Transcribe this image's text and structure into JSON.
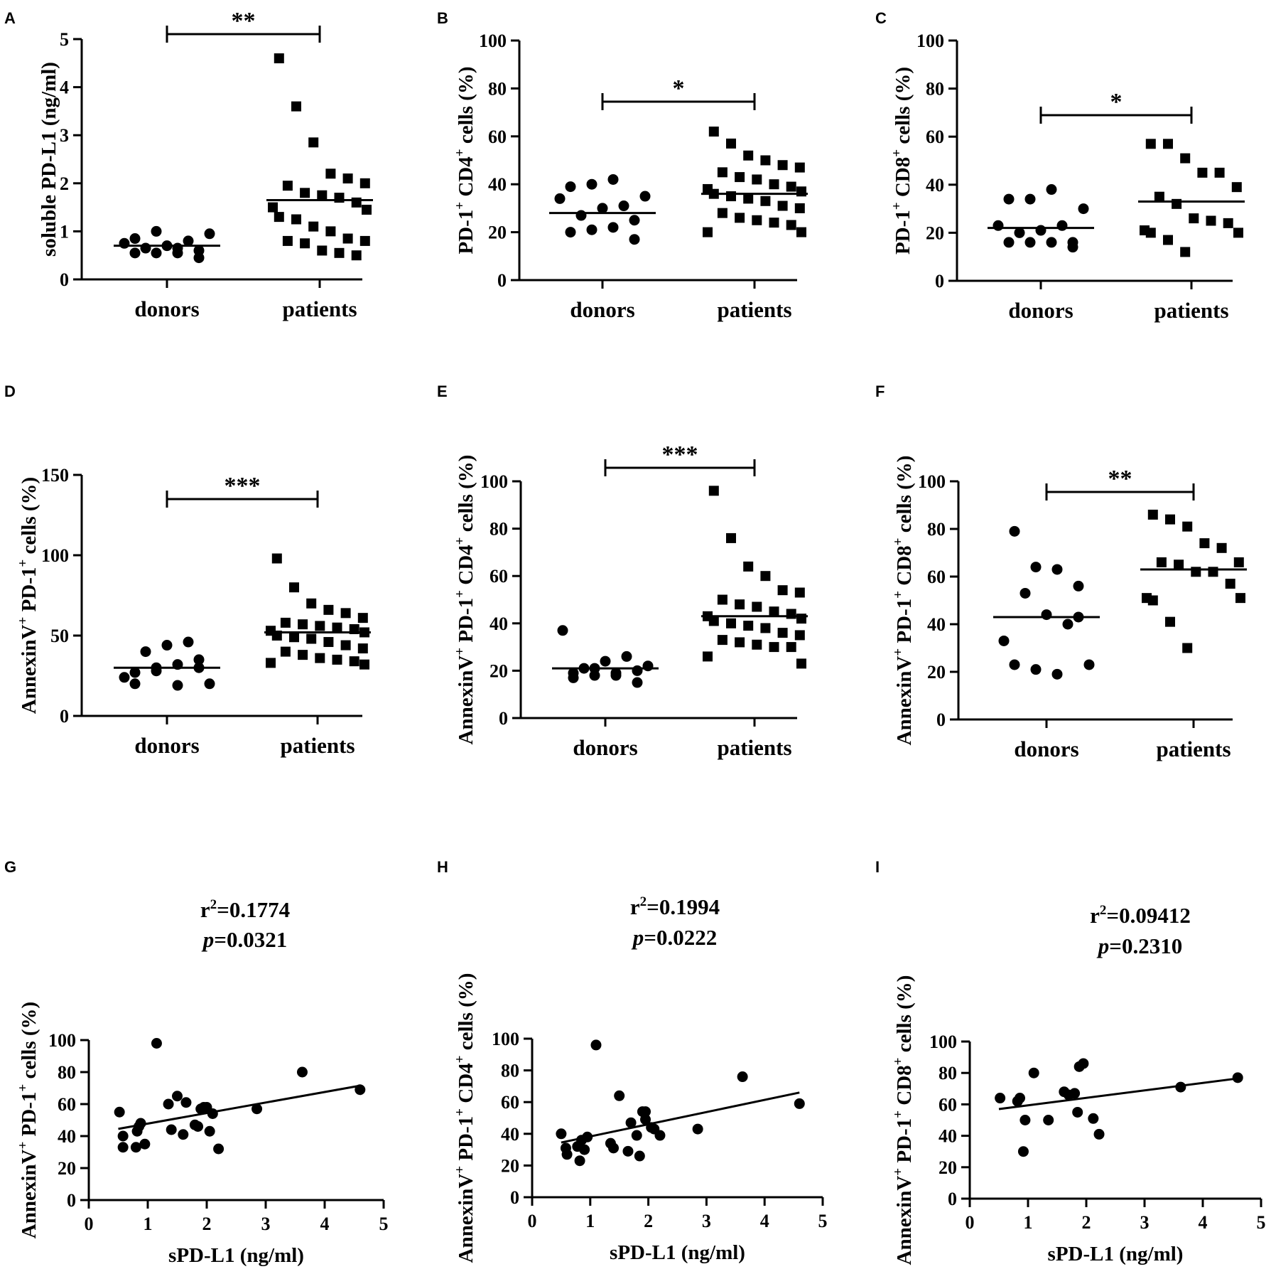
{
  "chart_data": [
    {
      "panel": "A",
      "type": "scatter",
      "kind": "group",
      "ylabel": "soluble PD-L1 (ng/ml)",
      "ylabel_parts": [
        [
          "soluble PD-L1 (ng/ml)",
          "n"
        ]
      ],
      "ylim": [
        0,
        5
      ],
      "yticks": [
        0,
        1,
        2,
        3,
        4,
        5
      ],
      "categories": [
        "donors",
        "patients"
      ],
      "significance": "**",
      "series": [
        {
          "name": "donors",
          "marker": "circle",
          "mean": 0.7,
          "values": [
            0.55,
            0.55,
            0.55,
            0.6,
            0.65,
            0.7,
            0.8,
            0.75,
            0.95,
            0.85,
            1.0,
            0.65,
            0.45
          ]
        },
        {
          "name": "patients",
          "marker": "square",
          "mean": 1.65,
          "values": [
            4.6,
            3.6,
            2.85,
            2.2,
            2.1,
            2.0,
            1.95,
            1.8,
            1.75,
            1.7,
            1.6,
            1.5,
            1.45,
            1.3,
            1.25,
            1.1,
            1.0,
            0.85,
            0.8,
            0.8,
            0.75,
            0.6,
            0.55,
            0.5
          ]
        }
      ]
    },
    {
      "panel": "B",
      "type": "scatter",
      "kind": "group",
      "ylabel": "PD-1+ CD4+ cells (%)",
      "ylabel_parts": [
        [
          "PD-1",
          "n"
        ],
        [
          "+",
          "sup"
        ],
        [
          " CD4",
          "n"
        ],
        [
          "+",
          "sup"
        ],
        [
          " cells (%)",
          "n"
        ]
      ],
      "ylim": [
        0,
        100
      ],
      "yticks": [
        0,
        20,
        40,
        60,
        80,
        100
      ],
      "categories": [
        "donors",
        "patients"
      ],
      "significance": "*",
      "series": [
        {
          "name": "donors",
          "marker": "circle",
          "mean": 28,
          "values": [
            20,
            21,
            22,
            25,
            27,
            30,
            31,
            34,
            35,
            39,
            40,
            42,
            17
          ]
        },
        {
          "name": "patients",
          "marker": "square",
          "mean": 36,
          "values": [
            62,
            57,
            52,
            50,
            48,
            47,
            45,
            43,
            42,
            40,
            39,
            38,
            37,
            36,
            35,
            34,
            33,
            31,
            30,
            28,
            26,
            25,
            24,
            23,
            20,
            20
          ]
        }
      ]
    },
    {
      "panel": "C",
      "type": "scatter",
      "kind": "group",
      "ylabel": "PD-1+ CD8+ cells (%)",
      "ylabel_parts": [
        [
          "PD-1",
          "n"
        ],
        [
          "+",
          "sup"
        ],
        [
          " CD8",
          "n"
        ],
        [
          "+",
          "sup"
        ],
        [
          " cells (%)",
          "n"
        ]
      ],
      "ylim": [
        0,
        100
      ],
      "yticks": [
        0,
        20,
        40,
        60,
        80,
        100
      ],
      "categories": [
        "donors",
        "patients"
      ],
      "significance": "*",
      "series": [
        {
          "name": "donors",
          "marker": "circle",
          "mean": 22,
          "values": [
            16,
            16,
            16,
            16,
            20,
            21,
            23,
            23,
            30,
            34,
            34,
            38,
            14
          ]
        },
        {
          "name": "patients",
          "marker": "square",
          "mean": 33,
          "values": [
            57,
            57,
            51,
            45,
            45,
            39,
            35,
            32,
            26,
            25,
            24,
            21,
            20,
            20,
            17,
            12
          ]
        }
      ]
    },
    {
      "panel": "D",
      "type": "scatter",
      "kind": "group",
      "ylabel": "AnnexinV+ PD-1+ cells (%)",
      "ylabel_parts": [
        [
          "AnnexinV",
          "n"
        ],
        [
          "+",
          "sup"
        ],
        [
          " PD-1",
          "n"
        ],
        [
          "+",
          "sup"
        ],
        [
          " cells (%)",
          "n"
        ]
      ],
      "ylim": [
        0,
        150
      ],
      "yticks": [
        0,
        50,
        100,
        150
      ],
      "categories": [
        "donors",
        "patients"
      ],
      "significance": "***",
      "series": [
        {
          "name": "donors",
          "marker": "circle",
          "mean": 30,
          "values": [
            27,
            28,
            32,
            35,
            40,
            44,
            46,
            24,
            20,
            20,
            30,
            19,
            30
          ]
        },
        {
          "name": "patients",
          "marker": "square",
          "mean": 52,
          "values": [
            98,
            80,
            70,
            66,
            64,
            61,
            58,
            57,
            56,
            55,
            54,
            53,
            52,
            50,
            49,
            48,
            46,
            44,
            42,
            40,
            38,
            36,
            35,
            34,
            33,
            32
          ]
        }
      ]
    },
    {
      "panel": "E",
      "type": "scatter",
      "kind": "group",
      "ylabel": "AnnexinV+ PD-1+ CD4+ cells (%)",
      "ylabel_parts": [
        [
          "AnnexinV",
          "n"
        ],
        [
          "+",
          "sup"
        ],
        [
          " PD-1",
          "n"
        ],
        [
          "+",
          "sup"
        ],
        [
          " CD4",
          "n"
        ],
        [
          "+",
          "sup"
        ],
        [
          " cells (%)",
          "n"
        ]
      ],
      "ylim": [
        0,
        100
      ],
      "yticks": [
        0,
        20,
        40,
        60,
        80,
        100
      ],
      "categories": [
        "donors",
        "patients"
      ],
      "significance": "***",
      "series": [
        {
          "name": "donors",
          "marker": "circle",
          "mean": 21,
          "values": [
            19,
            18,
            18,
            20,
            21,
            24,
            26,
            37,
            22,
            17,
            21,
            19,
            15
          ]
        },
        {
          "name": "patients",
          "marker": "square",
          "mean": 43,
          "values": [
            96,
            76,
            64,
            60,
            54,
            53,
            50,
            48,
            47,
            45,
            44,
            43,
            42,
            41,
            40,
            39,
            38,
            36,
            35,
            33,
            32,
            31,
            30,
            30,
            26,
            23
          ]
        }
      ]
    },
    {
      "panel": "F",
      "type": "scatter",
      "kind": "group",
      "ylabel": "AnnexinV+ PD-1+ CD8+ cells (%)",
      "ylabel_parts": [
        [
          "AnnexinV",
          "n"
        ],
        [
          "+",
          "sup"
        ],
        [
          " PD-1",
          "n"
        ],
        [
          "+",
          "sup"
        ],
        [
          " CD8",
          "n"
        ],
        [
          "+",
          "sup"
        ],
        [
          " cells (%)",
          "n"
        ]
      ],
      "ylim": [
        0,
        100
      ],
      "yticks": [
        0,
        20,
        40,
        60,
        80,
        100
      ],
      "categories": [
        "donors",
        "patients"
      ],
      "significance": "**",
      "series": [
        {
          "name": "donors",
          "marker": "circle",
          "mean": 43,
          "values": [
            79,
            64,
            63,
            56,
            53,
            44,
            40,
            33,
            23,
            23,
            21,
            19,
            43
          ]
        },
        {
          "name": "patients",
          "marker": "square",
          "mean": 63,
          "values": [
            86,
            84,
            81,
            74,
            72,
            66,
            66,
            65,
            62,
            62,
            57,
            51,
            51,
            50,
            41,
            30
          ]
        }
      ]
    },
    {
      "panel": "G",
      "type": "scatter",
      "kind": "correlation",
      "ylabel": "AnnexinV+ PD-1+ cells (%)",
      "ylabel_parts": [
        [
          "AnnexinV",
          "n"
        ],
        [
          "+",
          "sup"
        ],
        [
          " PD-1",
          "n"
        ],
        [
          "+",
          "sup"
        ],
        [
          " cells (%)",
          "n"
        ]
      ],
      "xlabel": "sPD-L1 (ng/ml)",
      "xlim": [
        0,
        5
      ],
      "xticks": [
        0,
        1,
        2,
        3,
        4,
        5
      ],
      "ylim": [
        0,
        100
      ],
      "yticks": [
        0,
        20,
        40,
        60,
        80,
        100
      ],
      "r2": "0.1774",
      "p": "0.0321",
      "fit": {
        "x1": 0.5,
        "y1": 44.5,
        "x2": 4.6,
        "y2": 71.5
      },
      "points": [
        [
          0.52,
          55
        ],
        [
          0.58,
          40
        ],
        [
          0.58,
          33
        ],
        [
          0.82,
          43
        ],
        [
          0.85,
          46
        ],
        [
          0.88,
          48
        ],
        [
          0.8,
          33
        ],
        [
          0.95,
          35
        ],
        [
          1.15,
          98
        ],
        [
          1.35,
          60
        ],
        [
          1.4,
          44
        ],
        [
          1.5,
          65
        ],
        [
          1.6,
          41
        ],
        [
          1.65,
          61
        ],
        [
          1.8,
          47
        ],
        [
          1.85,
          46
        ],
        [
          1.9,
          57
        ],
        [
          1.95,
          58
        ],
        [
          2.0,
          58
        ],
        [
          2.05,
          43
        ],
        [
          2.1,
          54
        ],
        [
          2.2,
          32
        ],
        [
          2.85,
          57
        ],
        [
          3.62,
          80
        ],
        [
          4.6,
          69
        ]
      ]
    },
    {
      "panel": "H",
      "type": "scatter",
      "kind": "correlation",
      "ylabel": "AnnexinV+ PD-1+ CD4+ cells (%)",
      "ylabel_parts": [
        [
          "AnnexinV",
          "n"
        ],
        [
          "+",
          "sup"
        ],
        [
          " PD-1",
          "n"
        ],
        [
          "+",
          "sup"
        ],
        [
          " CD4",
          "n"
        ],
        [
          "+",
          "sup"
        ],
        [
          " cells (%)",
          "n"
        ]
      ],
      "xlabel": "sPD-L1 (ng/ml)",
      "xlim": [
        0,
        5
      ],
      "xticks": [
        0,
        1,
        2,
        3,
        4,
        5
      ],
      "ylim": [
        0,
        100
      ],
      "yticks": [
        0,
        20,
        40,
        60,
        80,
        100
      ],
      "r2": "0.1994",
      "p": "0.0222",
      "fit": {
        "x1": 0.5,
        "y1": 34.5,
        "x2": 4.6,
        "y2": 66
      },
      "points": [
        [
          0.5,
          40
        ],
        [
          0.58,
          31
        ],
        [
          0.6,
          27
        ],
        [
          0.78,
          32
        ],
        [
          0.82,
          23
        ],
        [
          0.85,
          36
        ],
        [
          0.9,
          30
        ],
        [
          0.95,
          38
        ],
        [
          1.1,
          96
        ],
        [
          1.35,
          34
        ],
        [
          1.4,
          31
        ],
        [
          1.5,
          64
        ],
        [
          1.65,
          29
        ],
        [
          1.7,
          47
        ],
        [
          1.8,
          39
        ],
        [
          1.85,
          26
        ],
        [
          1.9,
          54
        ],
        [
          1.95,
          54
        ],
        [
          1.95,
          49
        ],
        [
          2.05,
          44
        ],
        [
          2.1,
          43
        ],
        [
          2.2,
          39
        ],
        [
          2.85,
          43
        ],
        [
          3.62,
          76
        ],
        [
          4.6,
          59
        ]
      ]
    },
    {
      "panel": "I",
      "type": "scatter",
      "kind": "correlation",
      "ylabel": "AnnexinV+ PD-1+ CD8+ cells (%)",
      "ylabel_parts": [
        [
          "AnnexinV",
          "n"
        ],
        [
          "+",
          "sup"
        ],
        [
          " PD-1",
          "n"
        ],
        [
          "+",
          "sup"
        ],
        [
          " CD8",
          "n"
        ],
        [
          "+",
          "sup"
        ],
        [
          " cells (%)",
          "n"
        ]
      ],
      "xlabel": "sPD-L1 (ng/ml)",
      "xlim": [
        0,
        5
      ],
      "xticks": [
        0,
        1,
        2,
        3,
        4,
        5
      ],
      "ylim": [
        0,
        100
      ],
      "yticks": [
        0,
        20,
        40,
        60,
        80,
        100
      ],
      "r2": "0.09412",
      "p": "0.2310",
      "fit": {
        "x1": 0.5,
        "y1": 57,
        "x2": 4.6,
        "y2": 76.5
      },
      "points": [
        [
          0.52,
          64
        ],
        [
          0.82,
          62
        ],
        [
          0.86,
          64
        ],
        [
          0.92,
          30
        ],
        [
          0.95,
          50
        ],
        [
          1.1,
          80
        ],
        [
          1.35,
          50
        ],
        [
          1.62,
          68
        ],
        [
          1.7,
          66
        ],
        [
          1.8,
          67
        ],
        [
          1.85,
          55
        ],
        [
          1.88,
          84
        ],
        [
          1.95,
          86
        ],
        [
          2.12,
          51
        ],
        [
          2.22,
          41
        ],
        [
          3.62,
          71
        ],
        [
          4.6,
          77
        ]
      ]
    }
  ]
}
